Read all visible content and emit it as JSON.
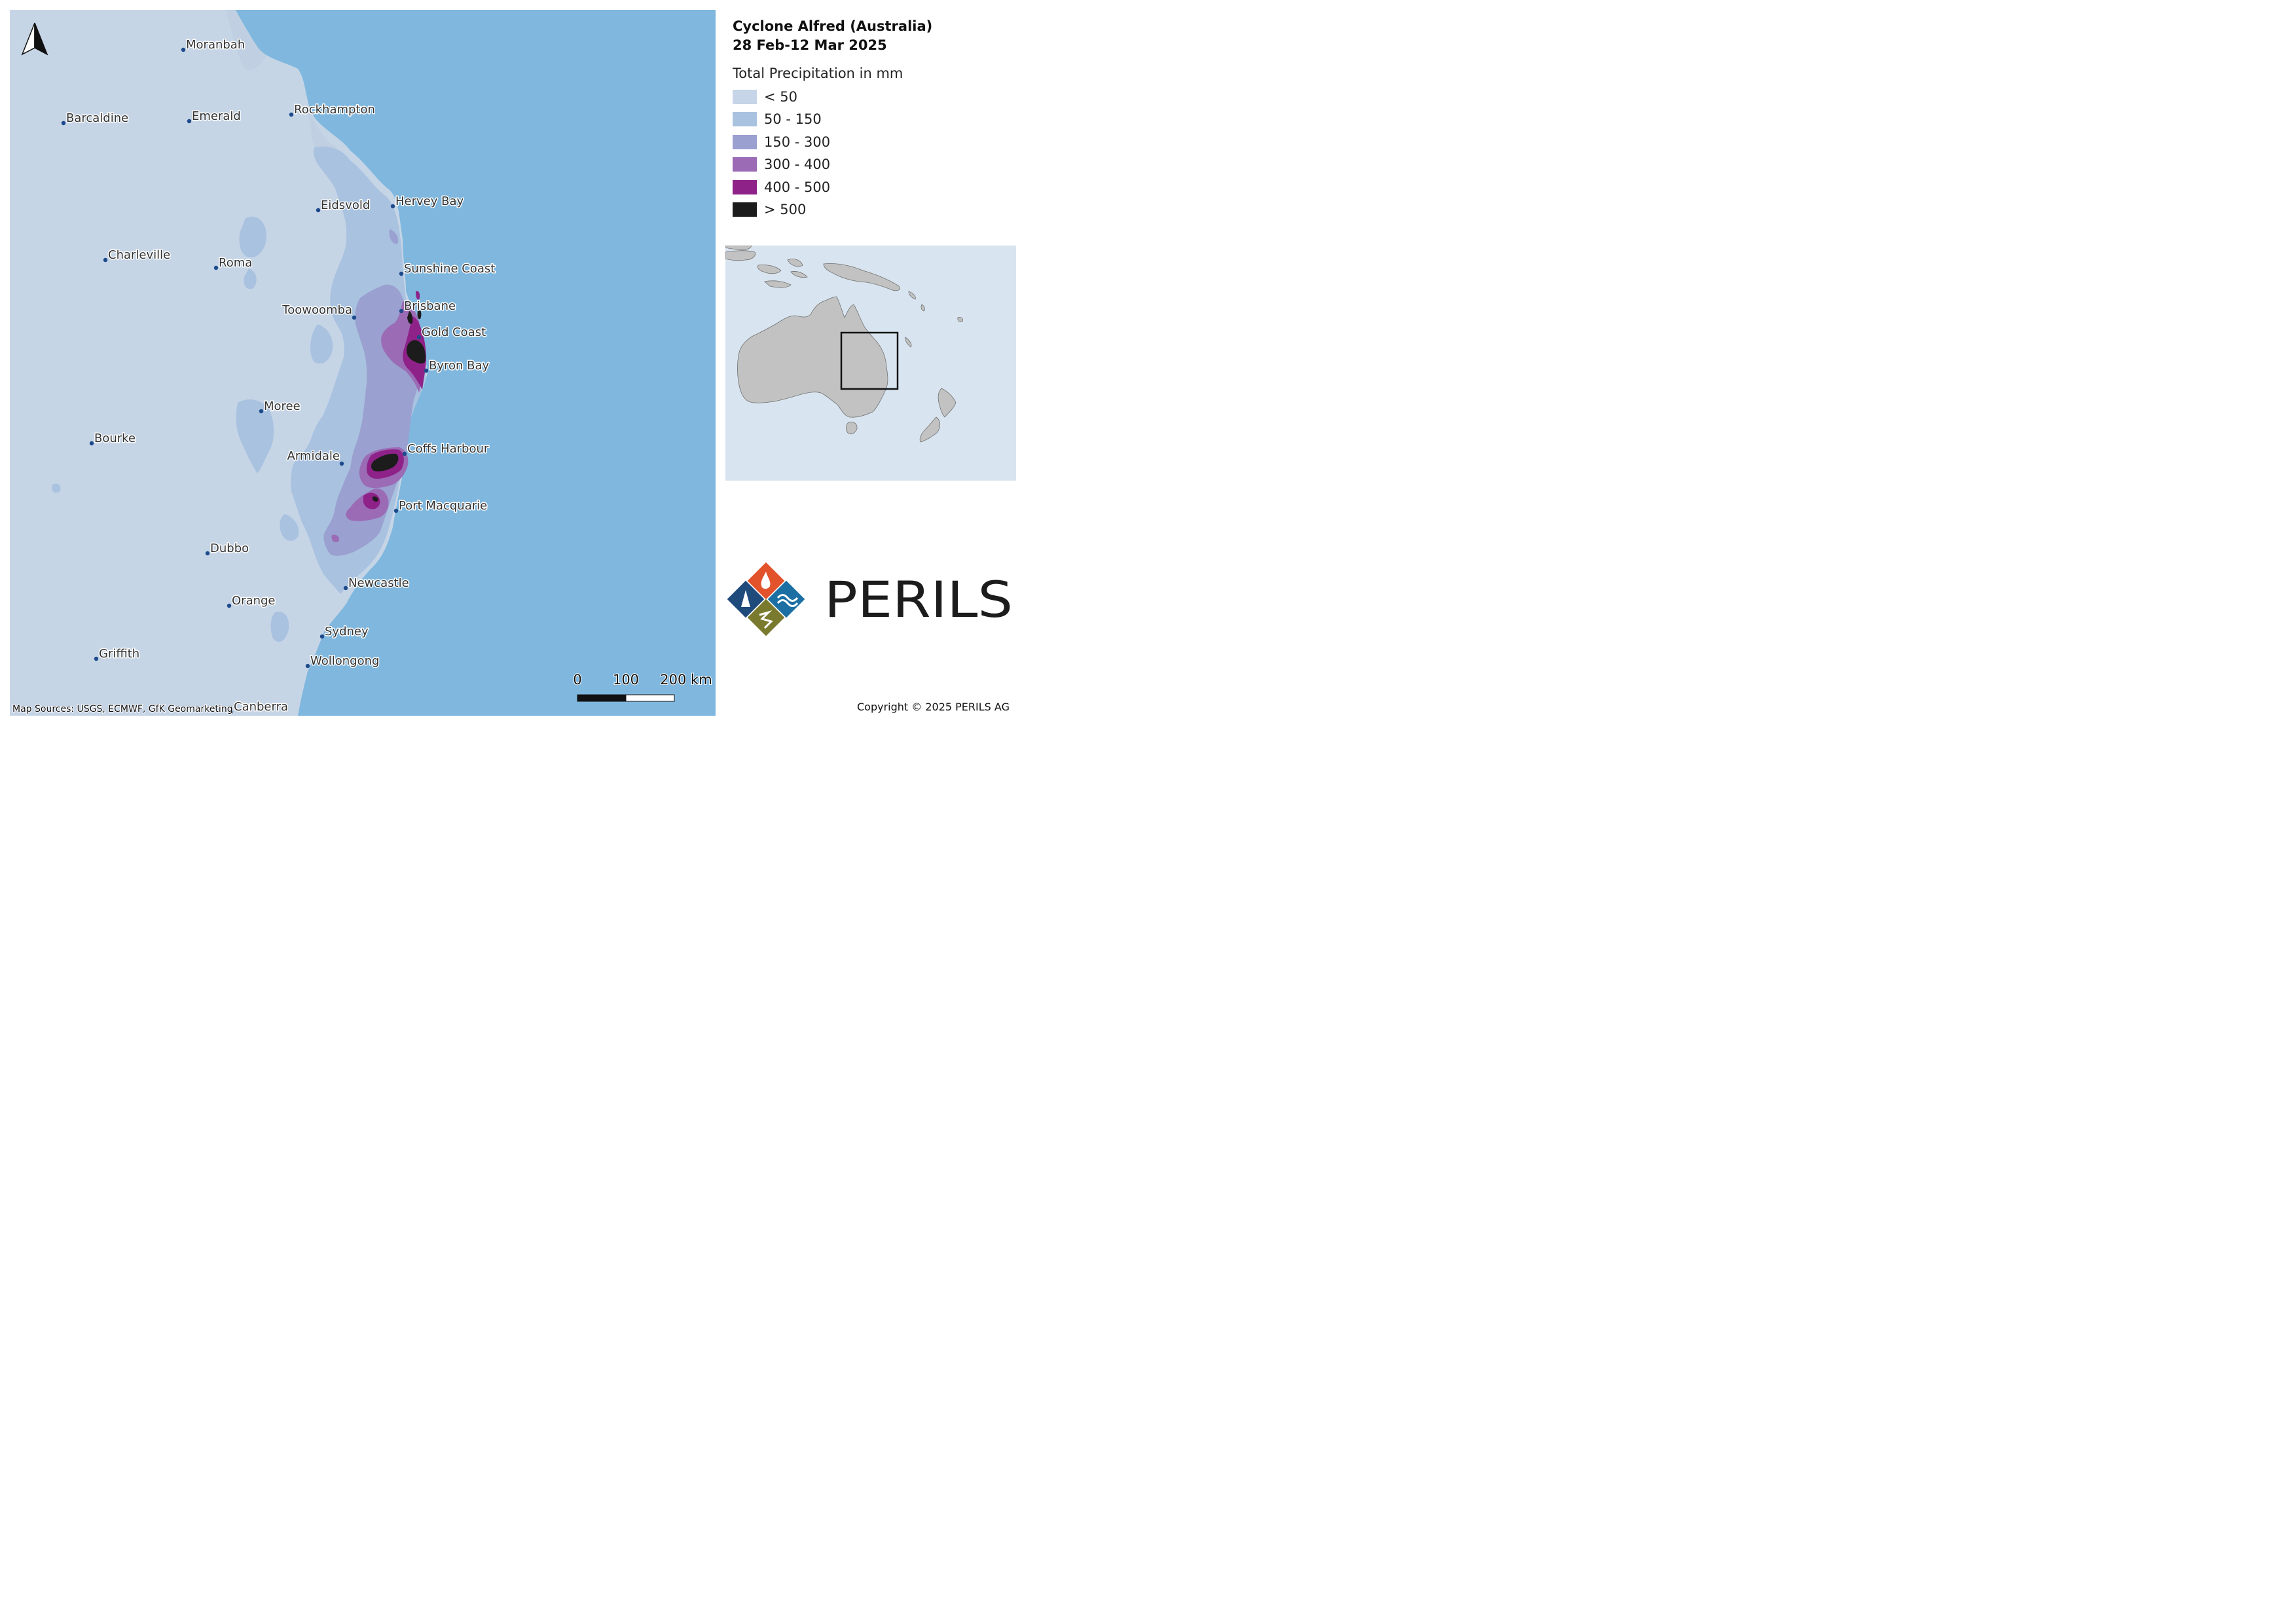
{
  "title": {
    "line1": "Cyclone Alfred (Australia)",
    "line2": "28 Feb-12 Mar 2025"
  },
  "legend": {
    "heading": "Total Precipitation in mm",
    "items": [
      {
        "label": "< 50",
        "color": "#c6d5e8"
      },
      {
        "label": "50 - 150",
        "color": "#a9c2e0"
      },
      {
        "label": "150 - 300",
        "color": "#9aa0cf"
      },
      {
        "label": "300 - 400",
        "color": "#9b6bb5"
      },
      {
        "label": "400 - 500",
        "color": "#8e2289"
      },
      {
        "label": "> 500",
        "color": "#1c1c1c"
      }
    ]
  },
  "map": {
    "cities": [
      {
        "name": "Moranbah"
      },
      {
        "name": "Barcaldine"
      },
      {
        "name": "Emerald"
      },
      {
        "name": "Rockhampton"
      },
      {
        "name": "Eidsvold"
      },
      {
        "name": "Hervey Bay"
      },
      {
        "name": "Charleville"
      },
      {
        "name": "Roma"
      },
      {
        "name": "Sunshine Coast"
      },
      {
        "name": "Toowoomba"
      },
      {
        "name": "Brisbane"
      },
      {
        "name": "Gold Coast"
      },
      {
        "name": "Byron Bay"
      },
      {
        "name": "Moree"
      },
      {
        "name": "Bourke"
      },
      {
        "name": "Armidale"
      },
      {
        "name": "Coffs Harbour"
      },
      {
        "name": "Port Macquarie"
      },
      {
        "name": "Dubbo"
      },
      {
        "name": "Newcastle"
      },
      {
        "name": "Orange"
      },
      {
        "name": "Sydney"
      },
      {
        "name": "Griffith"
      },
      {
        "name": "Wollongong"
      },
      {
        "name": "Canberra"
      }
    ],
    "scale": {
      "tick0": "0",
      "tick1": "100",
      "tick2": "200 km"
    },
    "sources": "Map Sources: USGS, ECMWF, GfK Geomarketing",
    "colors": {
      "ocean": "#7fb7de",
      "land": "#c6d5e6",
      "city_dot": "#1d4a8a"
    },
    "north_arrow_icon": "north-arrow-icon"
  },
  "inset": {
    "colors": {
      "water": "#d8e5f0",
      "land": "#c2c2c2",
      "frame": "#111111"
    }
  },
  "branding": {
    "name": "PERILS",
    "logo_icon": "perils-logo-icon"
  },
  "copyright": "Copyright © 2025 PERILS AG"
}
